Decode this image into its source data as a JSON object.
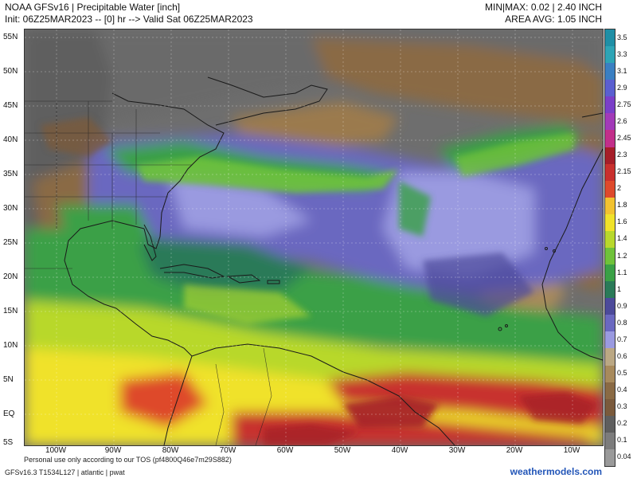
{
  "header": {
    "title": "NOAA GFSv16 |  Precipitable Water [inch]",
    "init_line": "Init: 06Z25MAR2023 -- [0] hr --> Valid Sat 06Z25MAR2023",
    "minmax": "MIN|MAX: 0.02 | 2.40 INCH",
    "area_avg": "AREA AVG: 1.05 INCH"
  },
  "map": {
    "lat_labels": [
      "55N",
      "50N",
      "45N",
      "40N",
      "35N",
      "30N",
      "25N",
      "20N",
      "15N",
      "10N",
      "5N",
      "EQ",
      "5S"
    ],
    "lon_labels": [
      "100W",
      "90W",
      "80W",
      "70W",
      "60W",
      "50W",
      "40W",
      "30W",
      "20W",
      "10W"
    ]
  },
  "colorbar": {
    "labels": [
      "3.5",
      "3.3",
      "3.1",
      "2.9",
      "2.75",
      "2.6",
      "2.45",
      "2.3",
      "2.15",
      "2",
      "1.8",
      "1.6",
      "1.4",
      "1.2",
      "1.1",
      "1",
      "0.9",
      "0.8",
      "0.7",
      "0.6",
      "0.5",
      "0.4",
      "0.3",
      "0.2",
      "0.1",
      "0.04"
    ],
    "colors": [
      "#1f8fa6",
      "#2ea4b5",
      "#3a7fc2",
      "#5a5fd0",
      "#7a3fc8",
      "#a23ab8",
      "#c22f8a",
      "#a51e28",
      "#c8302d",
      "#de4a2c",
      "#f2c230",
      "#f0e22a",
      "#b8d82c",
      "#6fc23a",
      "#3aa046",
      "#2a7a58",
      "#4c4a9a",
      "#6a68c0",
      "#9a9ae0",
      "#bba884",
      "#a88a5c",
      "#8a6a44",
      "#7a5a3c",
      "#5e5e5e",
      "#7c7c7c",
      "#9a9a9a"
    ]
  },
  "footer": {
    "tos": "Personal use only according to our TOS (pf4800Q46e7m29S882)",
    "model_line": "GFSv16.3 T1534L127 | atlantic | pwat",
    "brand": "weathermodels.com"
  }
}
